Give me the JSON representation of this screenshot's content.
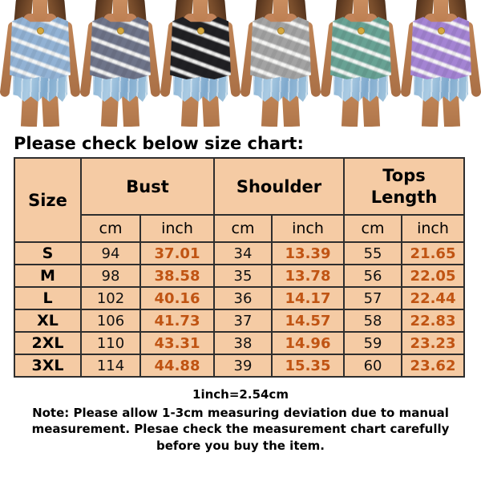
{
  "products": {
    "stripe_color": "#faf9f6",
    "skin_color": "#c08557",
    "hair_color": "#7a4e2c",
    "denim_color": "#a3c6de",
    "items": [
      {
        "name": "light-blue",
        "color": "#92b2d4"
      },
      {
        "name": "slate-blue",
        "color": "#6e7489"
      },
      {
        "name": "black",
        "color": "#202023"
      },
      {
        "name": "gray",
        "color": "#a3a3a3"
      },
      {
        "name": "green",
        "color": "#68a294"
      },
      {
        "name": "purple",
        "color": "#a484d3"
      }
    ]
  },
  "heading": "Please check below size chart:",
  "table": {
    "header_bg": "#f5cba4",
    "inch_color": "#c05413",
    "size_header": "Size",
    "groups": [
      {
        "label": "Bust"
      },
      {
        "label": "Shoulder"
      },
      {
        "label": "Tops Length"
      }
    ],
    "units": [
      "cm",
      "inch",
      "cm",
      "inch",
      "cm",
      "inch"
    ],
    "rows": [
      {
        "size": "S",
        "values": [
          "94",
          "37.01",
          "34",
          "13.39",
          "55",
          "21.65"
        ]
      },
      {
        "size": "M",
        "values": [
          "98",
          "38.58",
          "35",
          "13.78",
          "56",
          "22.05"
        ]
      },
      {
        "size": "L",
        "values": [
          "102",
          "40.16",
          "36",
          "14.17",
          "57",
          "22.44"
        ]
      },
      {
        "size": "XL",
        "values": [
          "106",
          "41.73",
          "37",
          "14.57",
          "58",
          "22.83"
        ]
      },
      {
        "size": "2XL",
        "values": [
          "110",
          "43.31",
          "38",
          "14.96",
          "59",
          "23.23"
        ]
      },
      {
        "size": "3XL",
        "values": [
          "114",
          "44.88",
          "39",
          "15.35",
          "60",
          "23.62"
        ]
      }
    ]
  },
  "notes": {
    "conversion": "1inch=2.54cm",
    "measurement": "Note: Please allow 1-3cm measuring deviation due to manual measurement. Plesae check the measurement chart carefully before you buy the item."
  }
}
